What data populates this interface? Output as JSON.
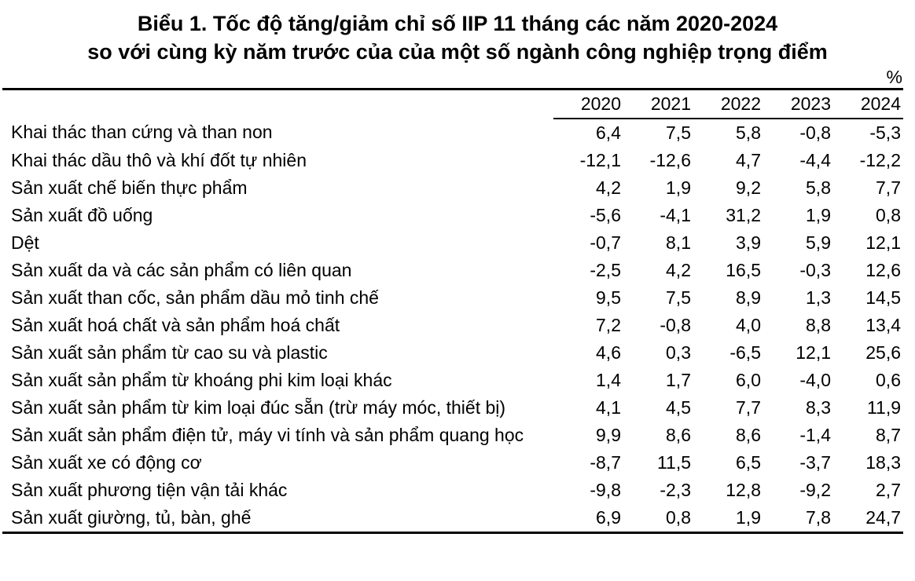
{
  "title": {
    "line1": "Biểu 1. Tốc độ tăng/giảm chỉ số IIP 11 tháng các năm 2020-2024",
    "line2": "so với cùng kỳ năm trước của của một số ngành công nghiệp trọng điểm"
  },
  "unit_label": "%",
  "colors": {
    "text": "#000000",
    "background": "#ffffff",
    "rule": "#000000"
  },
  "chart_data": {
    "type": "table",
    "title": "Biểu 1. Tốc độ tăng/giảm chỉ số IIP 11 tháng các năm 2020-2024 so với cùng kỳ năm trước của của một số ngành công nghiệp trọng điểm",
    "unit": "%",
    "columns": [
      "2020",
      "2021",
      "2022",
      "2023",
      "2024"
    ],
    "rows": [
      {
        "label": "Khai thác than cứng và than non",
        "values": [
          "6,4",
          "7,5",
          "5,8",
          "-0,8",
          "-5,3"
        ]
      },
      {
        "label": "Khai thác dầu thô và khí đốt tự nhiên",
        "values": [
          "-12,1",
          "-12,6",
          "4,7",
          "-4,4",
          "-12,2"
        ]
      },
      {
        "label": "Sản xuất chế biến thực phẩm",
        "values": [
          "4,2",
          "1,9",
          "9,2",
          "5,8",
          "7,7"
        ]
      },
      {
        "label": "Sản xuất đồ uống",
        "values": [
          "-5,6",
          "-4,1",
          "31,2",
          "1,9",
          "0,8"
        ]
      },
      {
        "label": "Dệt",
        "values": [
          "-0,7",
          "8,1",
          "3,9",
          "5,9",
          "12,1"
        ]
      },
      {
        "label": "Sản xuất da và các sản phẩm có liên quan",
        "values": [
          "-2,5",
          "4,2",
          "16,5",
          "-0,3",
          "12,6"
        ]
      },
      {
        "label": "Sản xuất than cốc, sản phẩm dầu mỏ tinh chế",
        "values": [
          "9,5",
          "7,5",
          "8,9",
          "1,3",
          "14,5"
        ]
      },
      {
        "label": "Sản xuất hoá chất và sản phẩm hoá chất",
        "values": [
          "7,2",
          "-0,8",
          "4,0",
          "8,8",
          "13,4"
        ]
      },
      {
        "label": "Sản xuất sản phẩm từ cao su và plastic",
        "values": [
          "4,6",
          "0,3",
          "-6,5",
          "12,1",
          "25,6"
        ]
      },
      {
        "label": "Sản xuất sản phẩm từ khoáng phi kim loại khác",
        "values": [
          "1,4",
          "1,7",
          "6,0",
          "-4,0",
          "0,6"
        ]
      },
      {
        "label": "Sản xuất sản phẩm từ kim loại đúc sẵn (trừ máy móc, thiết bị)",
        "values": [
          "4,1",
          "4,5",
          "7,7",
          "8,3",
          "11,9"
        ]
      },
      {
        "label": "Sản xuất sản phẩm điện tử, máy vi tính và sản phẩm quang học",
        "values": [
          "9,9",
          "8,6",
          "8,6",
          "-1,4",
          "8,7"
        ]
      },
      {
        "label": "Sản xuất xe có động cơ",
        "values": [
          "-8,7",
          "11,5",
          "6,5",
          "-3,7",
          "18,3"
        ]
      },
      {
        "label": "Sản xuất phương tiện vận tải khác",
        "values": [
          "-9,8",
          "-2,3",
          "12,8",
          "-9,2",
          "2,7"
        ]
      },
      {
        "label": "Sản xuất giường, tủ, bàn, ghế",
        "values": [
          "6,9",
          "0,8",
          "1,9",
          "7,8",
          "24,7"
        ]
      }
    ]
  }
}
